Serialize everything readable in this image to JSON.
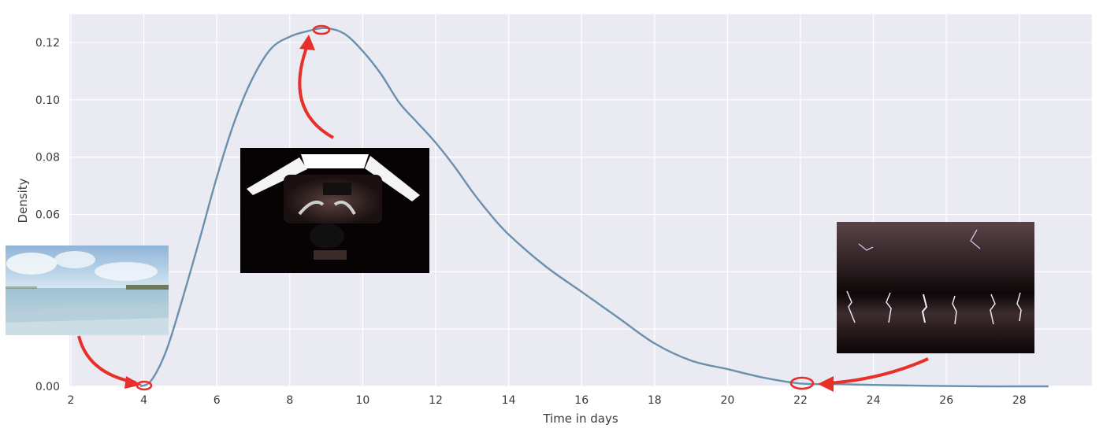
{
  "chart_data": {
    "type": "line",
    "xlabel": "Time in days",
    "ylabel": "Density",
    "xlim": [
      2,
      30
    ],
    "ylim": [
      0,
      0.129
    ],
    "grid": true,
    "xticks": [
      2,
      4,
      6,
      8,
      10,
      12,
      14,
      16,
      18,
      20,
      22,
      24,
      26,
      28
    ],
    "yticks": [
      0.0,
      0.02,
      0.04,
      0.06,
      0.08,
      0.1,
      0.12
    ],
    "ytick_labels": [
      "0.00",
      "0.02",
      "0.04",
      "0.06",
      "0.08",
      "0.10",
      "0.12"
    ],
    "series": [
      {
        "line_color": "#6a90ad",
        "x": [
          3.9,
          4.2,
          4.6,
          5.0,
          5.5,
          6.0,
          6.5,
          7.0,
          7.5,
          8.0,
          8.5,
          9.0,
          9.5,
          10.0,
          10.5,
          11.0,
          11.5,
          12.0,
          12.5,
          13.0,
          13.5,
          14.0,
          15.0,
          16.0,
          17.0,
          18.0,
          19.0,
          20.0,
          21.0,
          22.0,
          23.0,
          24.0,
          25.0,
          26.0,
          27.0,
          28.0,
          28.8
        ],
        "y": [
          0.0,
          0.002,
          0.012,
          0.028,
          0.05,
          0.073,
          0.093,
          0.108,
          0.118,
          0.122,
          0.124,
          0.125,
          0.123,
          0.117,
          0.109,
          0.099,
          0.092,
          0.085,
          0.077,
          0.068,
          0.06,
          0.053,
          0.042,
          0.033,
          0.024,
          0.015,
          0.009,
          0.006,
          0.003,
          0.001,
          0.0008,
          0.0005,
          0.0003,
          0.0001,
          0.0,
          0.0,
          0.0
        ]
      }
    ],
    "annotations": [
      {
        "target": [
          4.1,
          0.0
        ],
        "picture": "calm-sea-photo"
      },
      {
        "target": [
          9.0,
          0.125
        ],
        "picture": "desk-with-monitors-photo"
      },
      {
        "target": [
          22.0,
          0.001
        ],
        "picture": "lightning-storm-photo"
      }
    ],
    "annotation_color": "#e8302a"
  }
}
